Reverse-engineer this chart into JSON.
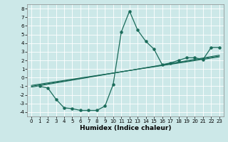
{
  "xlabel": "Humidex (Indice chaleur)",
  "bg_color": "#cce8e8",
  "grid_color": "#ffffff",
  "line_color": "#1a6b5a",
  "xlim": [
    -0.5,
    23.5
  ],
  "ylim": [
    -4.5,
    8.5
  ],
  "xticks": [
    0,
    1,
    2,
    3,
    4,
    5,
    6,
    7,
    8,
    9,
    10,
    11,
    12,
    13,
    14,
    15,
    16,
    17,
    18,
    19,
    20,
    21,
    22,
    23
  ],
  "yticks": [
    -4,
    -3,
    -2,
    -1,
    0,
    1,
    2,
    3,
    4,
    5,
    6,
    7,
    8
  ],
  "curve_x": [
    1,
    2,
    3,
    4,
    5,
    6,
    7,
    8,
    9,
    10,
    11,
    12,
    13,
    14,
    15,
    16,
    17,
    18,
    19,
    20,
    21,
    22,
    23
  ],
  "curve_y": [
    -1.0,
    -1.2,
    -2.5,
    -3.5,
    -3.6,
    -3.8,
    -3.8,
    -3.8,
    -3.3,
    -0.8,
    5.3,
    7.7,
    5.5,
    4.2,
    3.3,
    1.5,
    1.7,
    2.0,
    2.3,
    2.3,
    2.1,
    3.5,
    3.5
  ],
  "line1_x": [
    0,
    23
  ],
  "line1_y": [
    -1.0,
    2.5
  ],
  "line2_x": [
    0,
    23
  ],
  "line2_y": [
    -1.1,
    2.6
  ],
  "line3_x": [
    0,
    23
  ],
  "line3_y": [
    -0.9,
    2.4
  ]
}
